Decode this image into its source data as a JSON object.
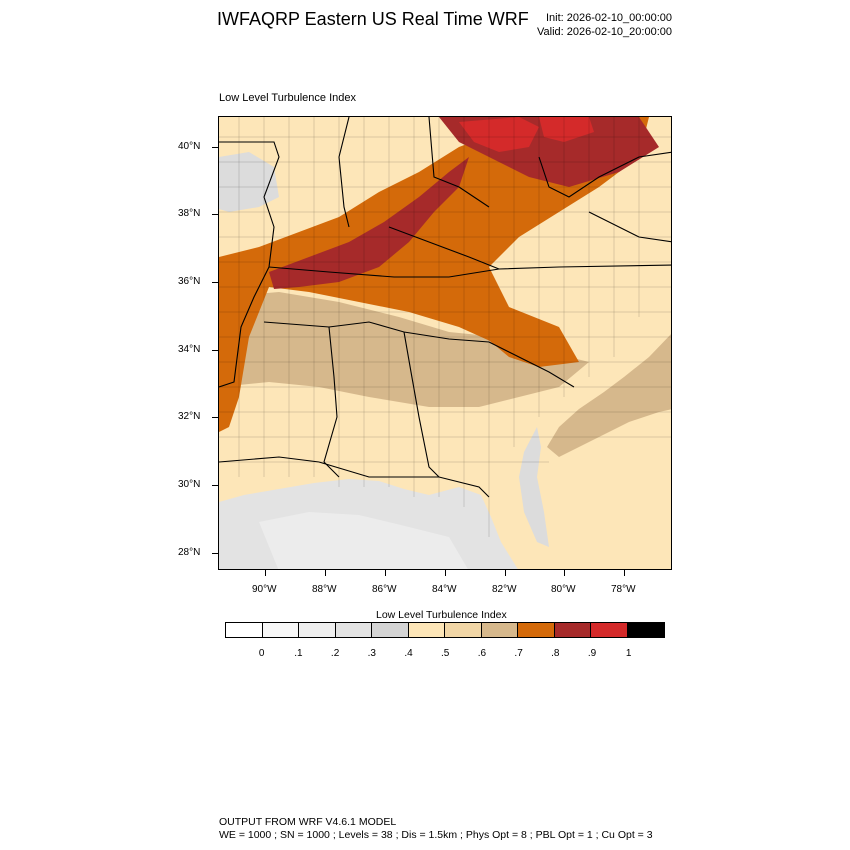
{
  "header": {
    "title": "IWFAQRP Eastern US Real Time WRF",
    "init": "Init: 2026-02-10_00:00:00",
    "valid": "Valid: 2026-02-10_20:00:00"
  },
  "map": {
    "subtitle": "Low Level Turbulence Index",
    "lat_labels": [
      "40°N",
      "38°N",
      "36°N",
      "34°N",
      "32°N",
      "30°N",
      "28°N"
    ],
    "lon_labels": [
      "90°W",
      "88°W",
      "86°W",
      "84°W",
      "82°W",
      "80°W",
      "78°W"
    ],
    "colors": {
      "ocean": "#e6e6e6",
      "ocean_light": "#ececec",
      "land_light": "#fde6b8",
      "land_mid": "#f1d6a6",
      "land_tan": "#d6b88c",
      "orange": "#d46a0a",
      "dark_red": "#a62a2a",
      "red": "#d42a2a",
      "grey": "#dcdcdc"
    }
  },
  "colorbar": {
    "title": "Low Level Turbulence Index",
    "labels": [
      "0",
      ".1",
      ".2",
      ".3",
      ".4",
      ".5",
      ".6",
      ".7",
      ".8",
      ".9",
      "1"
    ],
    "colors": [
      "#ffffff",
      "#f7f7f7",
      "#efefef",
      "#e3e3e3",
      "#d4d4d4",
      "#fde6b8",
      "#f1d6a6",
      "#d6b88c",
      "#d46a0a",
      "#a62a2a",
      "#d42a2a",
      "#000000"
    ]
  },
  "footer": {
    "line1": "OUTPUT FROM WRF V4.6.1 MODEL",
    "line2": "WE = 1000 ; SN = 1000 ; Levels = 38 ; Dis = 1.5km ; Phys Opt = 8 ; PBL Opt = 1 ; Cu Opt = 3"
  }
}
